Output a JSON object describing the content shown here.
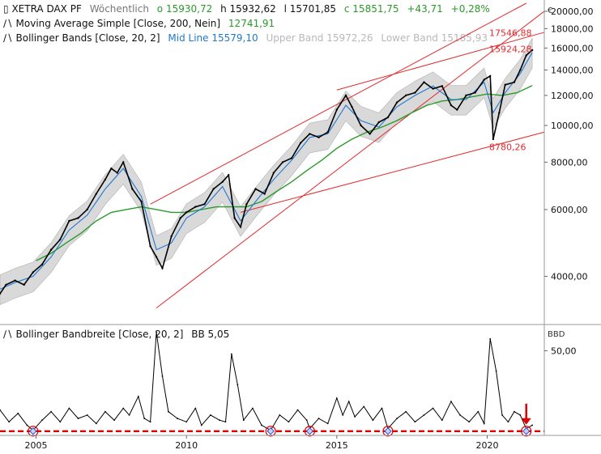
{
  "header": {
    "instrument": "XETRA DAX PF",
    "period": "Wöchentlich",
    "o_label": "o",
    "o_value": "15930,72",
    "h_label": "h",
    "h_value": "15932,62",
    "l_label": "l",
    "l_value": "15701,85",
    "c_label": "c",
    "c_value": "15851,75",
    "change": "+43,71",
    "change_pct": "+0,28%"
  },
  "indicators": {
    "sma_name": "Moving Average Simple",
    "sma_params": "[Close, 200, Nein]",
    "sma_value": "12741,91",
    "bb_name": "Bollinger Bands",
    "bb_params": "[Close, 20, 2]",
    "mid_label": "Mid Line",
    "mid_value": "15579,10",
    "upper_label": "Upper Band",
    "upper_value": "15972,26",
    "lower_label": "Lower Band",
    "lower_value": "15185,93",
    "bbw_name": "Bollinger Bandbreite",
    "bbw_params": "[Close, 20, 2]",
    "bbw_label": "BB",
    "bbw_value": "5,05"
  },
  "colors": {
    "price": "#000000",
    "bollinger_mid": "#1f78d1",
    "bollinger_fill": "#d9d9d9",
    "sma200": "#2a9a2a",
    "trendline": "#e3292d",
    "bandwidth": "#000000",
    "marker": "#3355cc"
  },
  "chart_data": [
    {
      "type": "line",
      "panel": "price",
      "y_scale": "log",
      "currency_symbol": "€",
      "ylim": [
        3000,
        21000
      ],
      "xlim": [
        2003.8,
        2021.9
      ],
      "y_ticks": [
        {
          "value": 4000,
          "label": "4000,00"
        },
        {
          "value": 6000,
          "label": "6000,00"
        },
        {
          "value": 8000,
          "label": "8000,00"
        },
        {
          "value": 10000,
          "label": "10000,00"
        },
        {
          "value": 12000,
          "label": "12000,00"
        },
        {
          "value": 14000,
          "label": "14000,00"
        },
        {
          "value": 16000,
          "label": "16000,00"
        },
        {
          "value": 18000,
          "label": "18000,00"
        },
        {
          "value": 20000,
          "label": "20000,00"
        }
      ],
      "x_ticks": [
        {
          "value": 2005,
          "label": "2005"
        },
        {
          "value": 2010,
          "label": "2010"
        },
        {
          "value": 2015,
          "label": "2015"
        },
        {
          "value": 2020,
          "label": "2020"
        }
      ],
      "series": [
        {
          "name": "XETRA DAX PF",
          "role": "price",
          "x": [
            2003.8,
            2004.0,
            2004.3,
            2004.6,
            2004.9,
            2005.2,
            2005.5,
            2005.8,
            2006.1,
            2006.4,
            2006.7,
            2007.0,
            2007.3,
            2007.5,
            2007.7,
            2007.9,
            2008.2,
            2008.5,
            2008.8,
            2009.0,
            2009.2,
            2009.5,
            2009.8,
            2010.0,
            2010.3,
            2010.6,
            2010.9,
            2011.2,
            2011.4,
            2011.6,
            2011.8,
            2012.0,
            2012.3,
            2012.6,
            2012.9,
            2013.2,
            2013.5,
            2013.8,
            2014.1,
            2014.4,
            2014.7,
            2015.0,
            2015.3,
            2015.5,
            2015.8,
            2016.1,
            2016.4,
            2016.7,
            2017.0,
            2017.3,
            2017.6,
            2017.9,
            2018.2,
            2018.5,
            2018.8,
            2019.0,
            2019.3,
            2019.6,
            2019.9,
            2020.1,
            2020.2,
            2020.4,
            2020.6,
            2020.9,
            2021.1,
            2021.3,
            2021.5
          ],
          "values": [
            3600,
            3800,
            3900,
            3800,
            4100,
            4300,
            4700,
            5000,
            5600,
            5700,
            6000,
            6600,
            7200,
            7700,
            7500,
            8000,
            6800,
            6300,
            4800,
            4500,
            4200,
            5100,
            5700,
            5900,
            6100,
            6200,
            6800,
            7100,
            7400,
            5700,
            5400,
            6200,
            6800,
            6600,
            7500,
            8000,
            8200,
            9000,
            9500,
            9300,
            9600,
            11000,
            12000,
            11200,
            10000,
            9500,
            10200,
            10500,
            11500,
            12000,
            12200,
            13000,
            12500,
            12700,
            11300,
            11000,
            12000,
            12200,
            13200,
            13500,
            9200,
            10800,
            12800,
            13000,
            14000,
            15300,
            15800
          ]
        },
        {
          "name": "Moving Average Simple",
          "role": "sma200",
          "x": [
            2005.0,
            2005.5,
            2006.0,
            2006.5,
            2007.0,
            2007.5,
            2008.0,
            2008.5,
            2009.0,
            2009.5,
            2010.0,
            2010.5,
            2011.0,
            2011.5,
            2012.0,
            2012.5,
            2013.0,
            2013.5,
            2014.0,
            2014.5,
            2015.0,
            2015.5,
            2016.0,
            2016.5,
            2017.0,
            2017.5,
            2018.0,
            2018.5,
            2019.0,
            2019.5,
            2020.0,
            2020.5,
            2021.0,
            2021.5
          ],
          "values": [
            4400,
            4600,
            4900,
            5200,
            5600,
            5900,
            6000,
            6100,
            6000,
            5900,
            5900,
            6000,
            6100,
            6100,
            6100,
            6300,
            6700,
            7100,
            7600,
            8100,
            8700,
            9200,
            9600,
            9900,
            10300,
            10800,
            11300,
            11600,
            11700,
            11900,
            12100,
            12000,
            12200,
            12742
          ]
        },
        {
          "name": "Mid Line",
          "role": "bollinger_mid",
          "x": [
            2003.8,
            2004.3,
            2004.9,
            2005.5,
            2006.1,
            2006.7,
            2007.3,
            2007.9,
            2008.5,
            2009.0,
            2009.5,
            2010.0,
            2010.6,
            2011.2,
            2011.8,
            2012.3,
            2012.9,
            2013.5,
            2014.1,
            2014.7,
            2015.3,
            2015.8,
            2016.4,
            2017.0,
            2017.6,
            2018.2,
            2018.8,
            2019.3,
            2019.9,
            2020.2,
            2020.6,
            2021.1,
            2021.5
          ],
          "values": [
            3700,
            3850,
            4000,
            4500,
            5300,
            5800,
            6800,
            7700,
            6500,
            4700,
            4900,
            5700,
            6100,
            6900,
            5600,
            6300,
            7200,
            8100,
            9300,
            9500,
            11300,
            10300,
            9900,
            11200,
            12000,
            12700,
            11700,
            11700,
            13000,
            10800,
            12200,
            13700,
            15579
          ]
        }
      ],
      "annotations": [
        {
          "label": "17546,88",
          "value": 17546.88
        },
        {
          "label": "15924,28",
          "value": 15924.28
        },
        {
          "label": "8780,26",
          "value": 8780.26
        }
      ],
      "trendlines": [
        {
          "x1": 2008.8,
          "y1": 6200,
          "x2": 2021.3,
          "y2": 21000
        },
        {
          "x1": 2009.0,
          "y1": 3300,
          "x2": 2021.9,
          "y2": 20000
        },
        {
          "x1": 2011.8,
          "y1": 5900,
          "x2": 2021.9,
          "y2": 9600
        },
        {
          "x1": 2015.0,
          "y1": 12400,
          "x2": 2021.9,
          "y2": 17600
        }
      ]
    },
    {
      "type": "line",
      "panel": "indicator",
      "ylim": [
        0,
        65
      ],
      "xlim": [
        2003.8,
        2021.9
      ],
      "y_ticks": [
        {
          "value": 50,
          "label": "50,00"
        }
      ],
      "axis_label": "BBD",
      "threshold": 2.5,
      "marker_x": [
        2004.9,
        2012.8,
        2014.1,
        2016.7,
        2021.3
      ],
      "series": [
        {
          "name": "Bollinger Bandbreite",
          "role": "bandwidth",
          "x": [
            2003.8,
            2004.1,
            2004.4,
            2004.7,
            2004.9,
            2005.2,
            2005.5,
            2005.8,
            2006.1,
            2006.4,
            2006.7,
            2007.0,
            2007.3,
            2007.6,
            2007.9,
            2008.1,
            2008.4,
            2008.6,
            2008.8,
            2009.0,
            2009.2,
            2009.4,
            2009.7,
            2010.0,
            2010.3,
            2010.5,
            2010.8,
            2011.1,
            2011.3,
            2011.5,
            2011.7,
            2011.9,
            2012.2,
            2012.5,
            2012.8,
            2013.1,
            2013.4,
            2013.7,
            2014.0,
            2014.1,
            2014.4,
            2014.7,
            2015.0,
            2015.2,
            2015.4,
            2015.6,
            2015.9,
            2016.2,
            2016.5,
            2016.7,
            2017.0,
            2017.3,
            2017.6,
            2017.9,
            2018.2,
            2018.5,
            2018.8,
            2019.1,
            2019.4,
            2019.7,
            2019.9,
            2020.1,
            2020.3,
            2020.5,
            2020.7,
            2020.9,
            2021.1,
            2021.3,
            2021.5
          ],
          "values": [
            15,
            8,
            13,
            6,
            3,
            9,
            14,
            8,
            16,
            10,
            12,
            7,
            14,
            9,
            16,
            12,
            23,
            10,
            8,
            61,
            35,
            14,
            10,
            8,
            16,
            6,
            12,
            9,
            8,
            48,
            30,
            9,
            16,
            6,
            3,
            12,
            8,
            15,
            9,
            4,
            10,
            7,
            22,
            12,
            20,
            11,
            17,
            9,
            16,
            4,
            10,
            14,
            8,
            12,
            16,
            9,
            20,
            12,
            8,
            14,
            7,
            57,
            38,
            12,
            8,
            14,
            12,
            4,
            6
          ]
        }
      ]
    }
  ]
}
